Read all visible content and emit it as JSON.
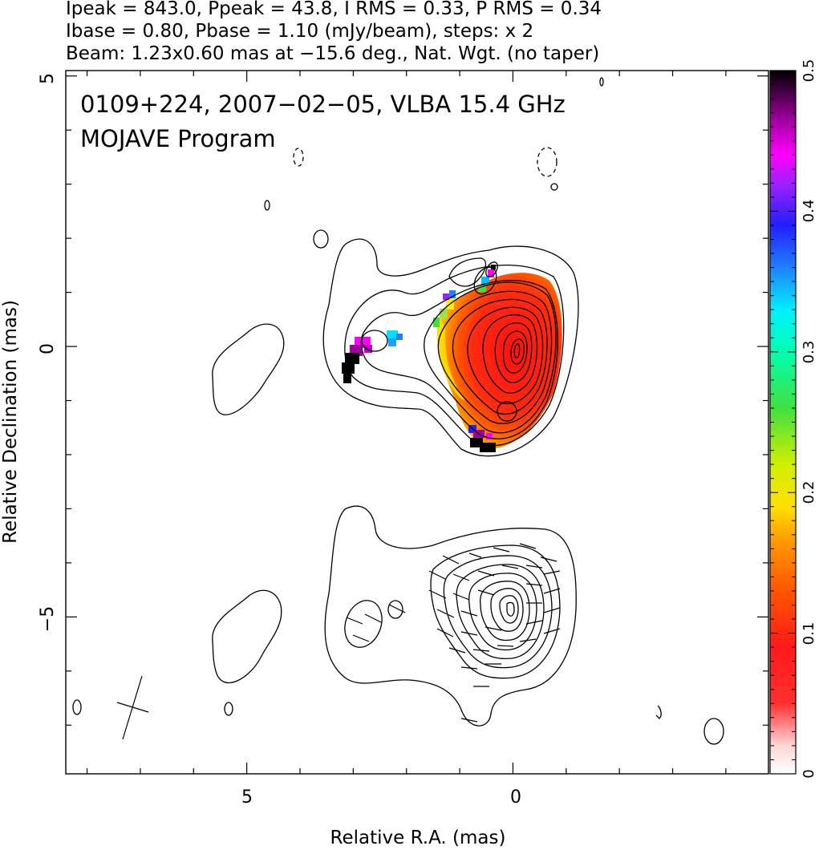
{
  "chart_data": {
    "type": "contour image with polarization vectors",
    "header_lines": [
      "Ipeak = 843.0, Ppeak = 43.8, I RMS = 0.33, P RMS = 0.34",
      "Ibase = 0.80, Pbase = 1.10 (mJy/beam), steps: x 2",
      "Beam: 1.23x0.60 mas at −15.6 deg., Nat. Wgt. (no taper)"
    ],
    "overlay_lines": [
      "0109+224, 2007−02−05, VLBA 15.4 GHz",
      "MOJAVE Program"
    ],
    "xlabel": "Relative R.A. (mas)",
    "ylabel": "Relative Declination (mas)",
    "xlim": [
      8.4,
      -4.8
    ],
    "ylim": [
      -7.9,
      5.1
    ],
    "x_ticks": [
      "5",
      "0"
    ],
    "y_ticks": [
      "5",
      "0",
      "−5"
    ],
    "colorbar": {
      "range": [
        0,
        0.5
      ],
      "ticks": [
        "0",
        "0.1",
        "0.2",
        "0.3",
        "0.4",
        "0.5"
      ]
    },
    "beam": {
      "major_mas": 1.23,
      "minor_mas": 0.6,
      "pa_deg": -15.6
    },
    "components": [
      {
        "name": "upper panel: total intensity contours with fractional polarization colour",
        "ra_center": 0.0,
        "dec_center": 0.0
      },
      {
        "name": "lower panel: polarized intensity contours with EVPA ticks",
        "ra_center": 0.0,
        "dec_center": -5.0
      }
    ]
  },
  "colors": {
    "frame": "#000000",
    "core_colour": "#ff1a1a",
    "edge_colour": "#ff9900",
    "accent_colour": "#e600e6"
  }
}
